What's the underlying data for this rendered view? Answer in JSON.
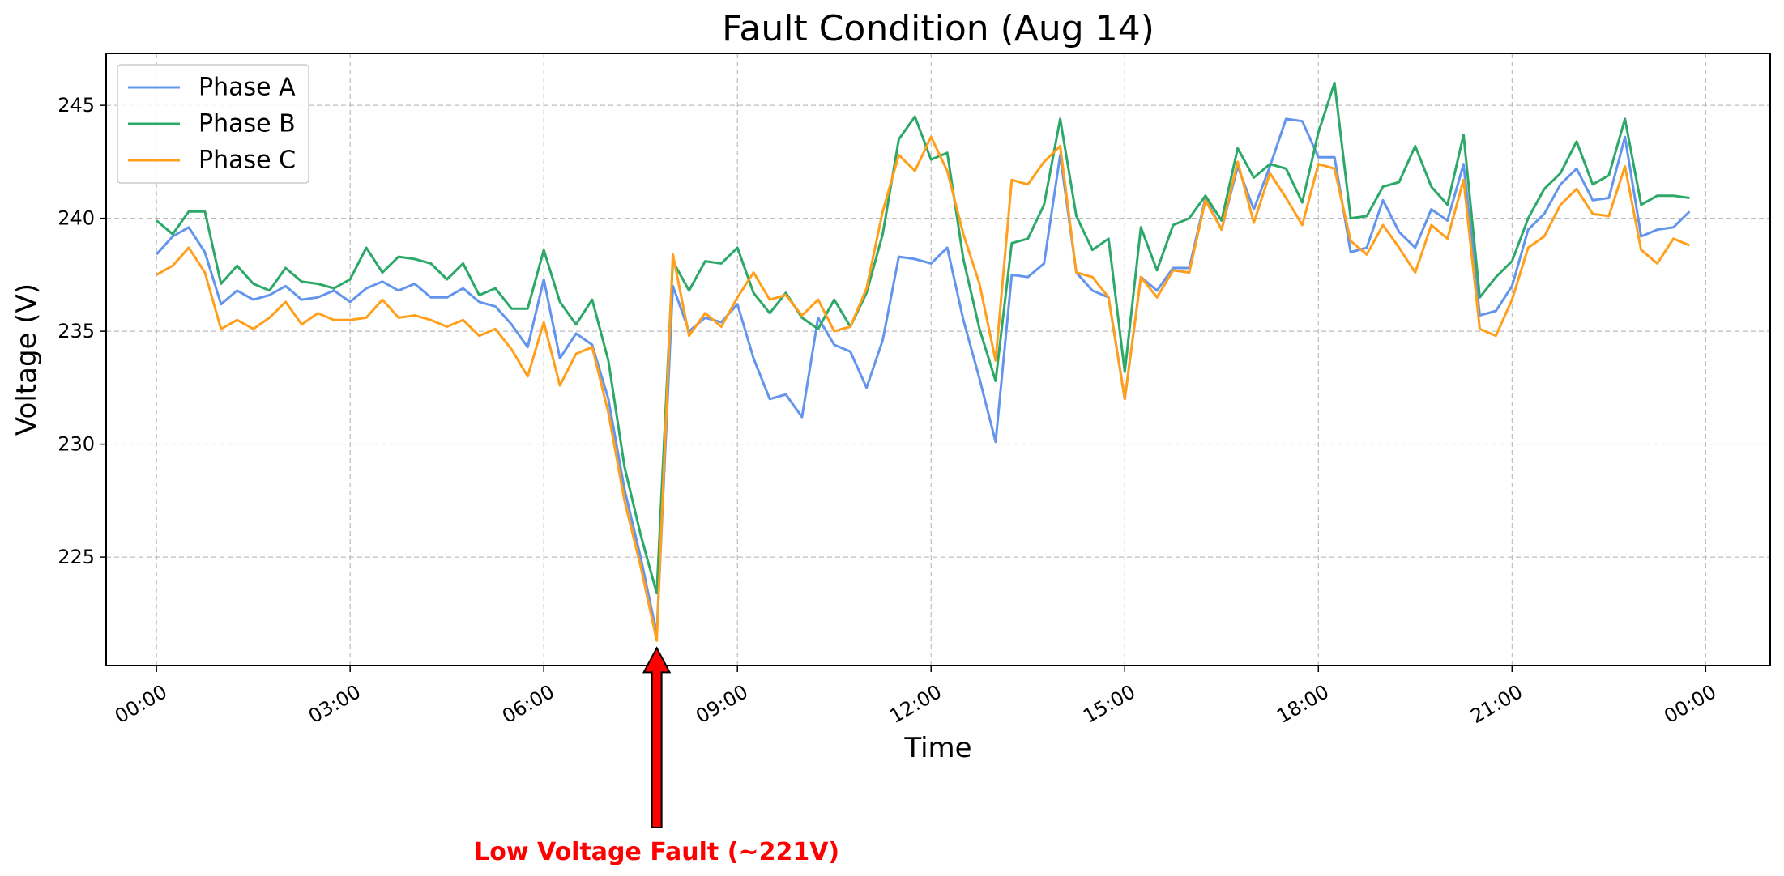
{
  "chart_data": {
    "type": "line",
    "title": "Fault Condition (Aug 14)",
    "xlabel": "Time",
    "ylabel": "Voltage (V)",
    "x_start": "00:00",
    "x_step_minutes": 15,
    "xlim_hours": [
      -0.78,
      25.0
    ],
    "ylim": [
      220.2,
      247.3
    ],
    "x_ticks": [
      {
        "hour": 0,
        "label": "00:00"
      },
      {
        "hour": 3,
        "label": "03:00"
      },
      {
        "hour": 6,
        "label": "06:00"
      },
      {
        "hour": 9,
        "label": "09:00"
      },
      {
        "hour": 12,
        "label": "12:00"
      },
      {
        "hour": 15,
        "label": "15:00"
      },
      {
        "hour": 18,
        "label": "18:00"
      },
      {
        "hour": 21,
        "label": "21:00"
      },
      {
        "hour": 24,
        "label": "00:00"
      }
    ],
    "y_ticks": [
      225,
      230,
      235,
      240,
      245
    ],
    "grid": true,
    "legend_position": "upper-left",
    "series": [
      {
        "name": "Phase A",
        "color": "#6495ED",
        "values": [
          238.4,
          239.2,
          239.6,
          238.5,
          236.2,
          236.8,
          236.4,
          236.6,
          237.0,
          236.4,
          236.5,
          236.8,
          236.3,
          236.9,
          237.2,
          236.8,
          237.1,
          236.5,
          236.5,
          236.9,
          236.3,
          236.1,
          235.3,
          234.3,
          237.3,
          233.8,
          234.9,
          234.4,
          232.0,
          228.0,
          225.0,
          221.6,
          237.0,
          235.0,
          235.6,
          235.4,
          236.2,
          233.8,
          232.0,
          232.2,
          231.2,
          235.6,
          234.4,
          234.1,
          232.5,
          234.6,
          238.3,
          238.2,
          238.0,
          238.7,
          235.5,
          232.9,
          230.1,
          237.5,
          237.4,
          238.0,
          242.8,
          237.6,
          236.8,
          236.5,
          232.0,
          237.4,
          236.8,
          237.8,
          237.8,
          240.9,
          239.5,
          242.3,
          240.4,
          242.3,
          244.4,
          244.3,
          242.7,
          242.7,
          238.5,
          238.7,
          240.8,
          239.4,
          238.7,
          240.4,
          239.9,
          242.4,
          235.7,
          235.9,
          237.0,
          239.5,
          240.2,
          241.5,
          242.2,
          240.8,
          240.9,
          243.6,
          239.2,
          239.5,
          239.6,
          240.3
        ]
      },
      {
        "name": "Phase B",
        "color": "#2CA868",
        "values": [
          239.9,
          239.3,
          240.3,
          240.3,
          237.1,
          237.9,
          237.1,
          236.8,
          237.8,
          237.2,
          237.1,
          236.9,
          237.3,
          238.7,
          237.6,
          238.3,
          238.2,
          238.0,
          237.3,
          238.0,
          236.6,
          236.9,
          236.0,
          236.0,
          238.6,
          236.3,
          235.3,
          236.4,
          233.7,
          229.0,
          226.0,
          223.4,
          238.1,
          236.8,
          238.1,
          238.0,
          238.7,
          236.7,
          235.8,
          236.7,
          235.6,
          235.1,
          236.4,
          235.2,
          236.7,
          239.3,
          243.5,
          244.5,
          242.6,
          242.9,
          238.2,
          235.1,
          232.8,
          238.9,
          239.1,
          240.6,
          244.4,
          240.1,
          238.6,
          239.1,
          233.2,
          239.6,
          237.7,
          239.7,
          240.0,
          241.0,
          239.9,
          243.1,
          241.8,
          242.4,
          242.2,
          240.7,
          243.8,
          246.0,
          240.0,
          240.1,
          241.4,
          241.6,
          243.2,
          241.4,
          240.6,
          243.7,
          236.5,
          237.4,
          238.1,
          240.0,
          241.3,
          242.0,
          243.4,
          241.5,
          241.9,
          244.4,
          240.6,
          241.0,
          241.0,
          240.9
        ]
      },
      {
        "name": "Phase C",
        "color": "#FF9F1C",
        "values": [
          237.5,
          237.9,
          238.7,
          237.6,
          235.1,
          235.5,
          235.1,
          235.6,
          236.3,
          235.3,
          235.8,
          235.5,
          235.5,
          235.6,
          236.4,
          235.6,
          235.7,
          235.5,
          235.2,
          235.5,
          234.8,
          235.1,
          234.2,
          233.0,
          235.4,
          232.6,
          234.0,
          234.3,
          231.4,
          227.5,
          224.6,
          221.3,
          238.4,
          234.8,
          235.8,
          235.2,
          236.5,
          237.6,
          236.4,
          236.6,
          235.7,
          236.4,
          235.0,
          235.2,
          236.9,
          240.3,
          242.8,
          242.1,
          243.6,
          242.1,
          239.3,
          237.1,
          233.7,
          241.7,
          241.5,
          242.5,
          243.2,
          237.6,
          237.4,
          236.5,
          232.0,
          237.4,
          236.5,
          237.7,
          237.6,
          240.8,
          239.5,
          242.5,
          239.8,
          242.0,
          240.9,
          239.7,
          242.4,
          242.2,
          239.0,
          238.4,
          239.7,
          238.7,
          237.6,
          239.7,
          239.1,
          241.7,
          235.1,
          234.8,
          236.4,
          238.7,
          239.2,
          240.6,
          241.3,
          240.2,
          240.1,
          242.3,
          238.6,
          238.0,
          239.1,
          238.8
        ]
      }
    ],
    "annotation": {
      "text": "Low Voltage Fault (~221V)",
      "hour": 7.75,
      "value": 221.3,
      "color": "#FF0000"
    }
  }
}
